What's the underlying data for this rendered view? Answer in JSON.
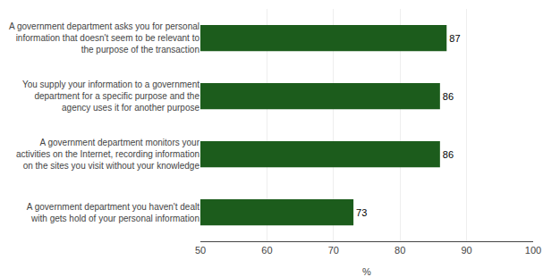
{
  "chart_data": {
    "type": "bar",
    "orientation": "horizontal",
    "categories": [
      "A government department you haven't dealt\nwith gets hold of your personal information",
      "A government department monitors your\nactivities on the Internet, recording information\non the sites you visit without your knowledge",
      "You supply your information to a government\ndepartment for a specific purpose and the\nagency uses it for another purpose",
      "A government department asks you for personal\ninformation that doesn't seem to be relevant to\nthe purpose of the transaction"
    ],
    "values": [
      73,
      86,
      86,
      87
    ],
    "color": "#1c5c1c",
    "xlabel": "%",
    "xlim": [
      50,
      100
    ],
    "xticks": [
      50,
      60,
      70,
      80,
      90,
      100
    ],
    "grid": true,
    "data_labels": true
  }
}
